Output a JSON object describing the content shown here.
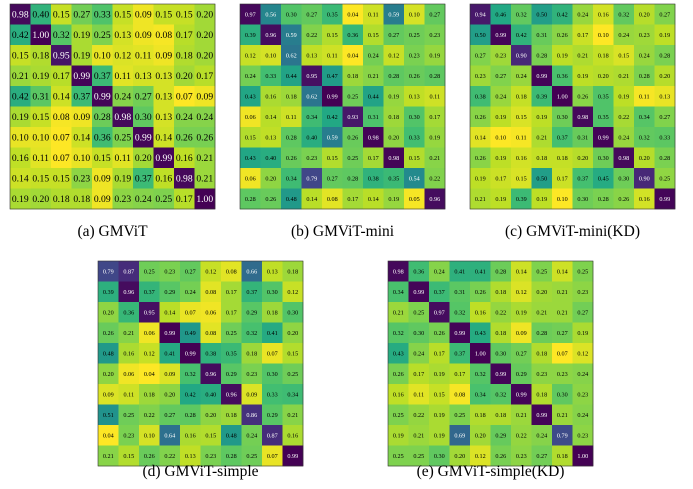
{
  "chart_data": [
    {
      "type": "heatmap",
      "caption": "(a) GMViT",
      "rows": 10,
      "cols": 10,
      "values": [
        [
          0.98,
          0.4,
          0.15,
          0.27,
          0.33,
          0.15,
          0.09,
          0.15,
          0.15,
          0.2
        ],
        [
          0.42,
          1.0,
          0.32,
          0.19,
          0.25,
          0.13,
          0.09,
          0.08,
          0.17,
          0.2
        ],
        [
          0.15,
          0.18,
          0.95,
          0.19,
          0.1,
          0.12,
          0.11,
          0.09,
          0.18,
          0.2
        ],
        [
          0.21,
          0.19,
          0.17,
          0.99,
          0.37,
          0.11,
          0.13,
          0.13,
          0.2,
          0.17
        ],
        [
          0.42,
          0.31,
          0.14,
          0.37,
          0.99,
          0.24,
          0.27,
          0.13,
          0.07,
          0.09
        ],
        [
          0.19,
          0.15,
          0.08,
          0.09,
          0.28,
          0.98,
          0.3,
          0.13,
          0.24,
          0.24
        ],
        [
          0.1,
          0.1,
          0.07,
          0.14,
          0.36,
          0.25,
          0.99,
          0.14,
          0.26,
          0.26
        ],
        [
          0.16,
          0.11,
          0.07,
          0.1,
          0.15,
          0.11,
          0.2,
          0.99,
          0.16,
          0.21
        ],
        [
          0.14,
          0.15,
          0.15,
          0.23,
          0.09,
          0.19,
          0.37,
          0.16,
          0.98,
          0.21
        ],
        [
          0.19,
          0.2,
          0.18,
          0.18,
          0.09,
          0.23,
          0.24,
          0.25,
          0.17,
          1.0
        ]
      ]
    },
    {
      "type": "heatmap",
      "caption": "(b) GMViT-mini",
      "rows": 10,
      "cols": 10,
      "values": [
        [
          0.97,
          0.56,
          0.3,
          0.27,
          0.35,
          0.04,
          0.11,
          0.59,
          0.1,
          0.27
        ],
        [
          0.39,
          0.96,
          0.59,
          0.22,
          0.15,
          0.36,
          0.15,
          0.27,
          0.25,
          0.23
        ],
        [
          0.12,
          0.1,
          0.62,
          0.13,
          0.11,
          0.04,
          0.24,
          0.12,
          0.23,
          0.19
        ],
        [
          0.24,
          0.33,
          0.44,
          0.95,
          0.47,
          0.18,
          0.21,
          0.28,
          0.26,
          0.28
        ],
        [
          0.43,
          0.16,
          0.18,
          0.62,
          0.99,
          0.25,
          0.44,
          0.19,
          0.13,
          0.11
        ],
        [
          0.06,
          0.14,
          0.11,
          0.34,
          0.42,
          0.93,
          0.31,
          0.18,
          0.3,
          0.17
        ],
        [
          0.15,
          0.13,
          0.28,
          0.4,
          0.59,
          0.26,
          0.98,
          0.2,
          0.33,
          0.19
        ],
        [
          0.43,
          0.4,
          0.26,
          0.23,
          0.15,
          0.25,
          0.17,
          0.98,
          0.15,
          0.21
        ],
        [
          0.06,
          0.2,
          0.34,
          0.79,
          0.27,
          0.28,
          0.38,
          0.35,
          0.54,
          0.22
        ],
        [
          0.28,
          0.26,
          0.48,
          0.14,
          0.08,
          0.17,
          0.14,
          0.19,
          0.05,
          0.96
        ]
      ]
    },
    {
      "type": "heatmap",
      "caption": "(c) GMViT-mini(KD)",
      "rows": 10,
      "cols": 10,
      "values": [
        [
          0.94,
          0.46,
          0.32,
          0.5,
          0.42,
          0.24,
          0.16,
          0.32,
          0.2,
          0.27
        ],
        [
          0.5,
          0.99,
          0.42,
          0.31,
          0.26,
          0.17,
          0.1,
          0.24,
          0.23,
          0.19
        ],
        [
          0.27,
          0.23,
          0.9,
          0.28,
          0.19,
          0.21,
          0.18,
          0.15,
          0.24,
          0.28
        ],
        [
          0.23,
          0.27,
          0.24,
          0.99,
          0.36,
          0.19,
          0.2,
          0.21,
          0.28,
          0.2
        ],
        [
          0.38,
          0.24,
          0.18,
          0.39,
          1.0,
          0.26,
          0.35,
          0.19,
          0.11,
          0.13
        ],
        [
          0.26,
          0.19,
          0.15,
          0.19,
          0.3,
          0.98,
          0.35,
          0.22,
          0.34,
          0.27
        ],
        [
          0.14,
          0.1,
          0.11,
          0.21,
          0.37,
          0.31,
          0.99,
          0.24,
          0.32,
          0.33
        ],
        [
          0.26,
          0.19,
          0.16,
          0.18,
          0.18,
          0.2,
          0.3,
          0.98,
          0.2,
          0.28
        ],
        [
          0.19,
          0.17,
          0.15,
          0.5,
          0.17,
          0.37,
          0.45,
          0.3,
          0.9,
          0.25
        ],
        [
          0.21,
          0.19,
          0.39,
          0.19,
          0.1,
          0.3,
          0.28,
          0.26,
          0.16,
          0.99
        ]
      ]
    },
    {
      "type": "heatmap",
      "caption": "(d) GMViT-simple",
      "rows": 10,
      "cols": 10,
      "values": [
        [
          0.79,
          0.87,
          0.25,
          0.23,
          0.27,
          0.12,
          0.08,
          0.66,
          0.13,
          0.18
        ],
        [
          0.39,
          0.96,
          0.37,
          0.29,
          0.24,
          0.08,
          0.17,
          0.37,
          0.3,
          0.12
        ],
        [
          0.2,
          0.36,
          0.95,
          0.14,
          0.07,
          0.06,
          0.17,
          0.29,
          0.18,
          0.3
        ],
        [
          0.26,
          0.21,
          0.06,
          0.99,
          0.49,
          0.08,
          0.25,
          0.32,
          0.41,
          0.2
        ],
        [
          0.48,
          0.16,
          0.12,
          0.41,
          0.99,
          0.38,
          0.35,
          0.18,
          0.07,
          0.15
        ],
        [
          0.2,
          0.06,
          0.04,
          0.09,
          0.32,
          0.96,
          0.29,
          0.23,
          0.3,
          0.25
        ],
        [
          0.09,
          0.11,
          0.18,
          0.2,
          0.42,
          0.4,
          0.96,
          0.09,
          0.33,
          0.34
        ],
        [
          0.51,
          0.25,
          0.22,
          0.27,
          0.28,
          0.2,
          0.18,
          0.86,
          0.29,
          0.21
        ],
        [
          0.04,
          0.23,
          0.1,
          0.64,
          0.16,
          0.15,
          0.48,
          0.24,
          0.87,
          0.16
        ],
        [
          0.21,
          0.15,
          0.26,
          0.22,
          0.13,
          0.23,
          0.28,
          0.25,
          0.07,
          0.99
        ]
      ]
    },
    {
      "type": "heatmap",
      "caption": "(e) GMViT-simple(KD)",
      "rows": 10,
      "cols": 10,
      "values": [
        [
          0.98,
          0.36,
          0.24,
          0.41,
          0.41,
          0.28,
          0.14,
          0.25,
          0.14,
          0.25
        ],
        [
          0.34,
          0.99,
          0.37,
          0.31,
          0.26,
          0.18,
          0.12,
          0.2,
          0.21,
          0.23
        ],
        [
          0.21,
          0.25,
          0.97,
          0.32,
          0.16,
          0.22,
          0.19,
          0.21,
          0.21,
          0.27
        ],
        [
          0.32,
          0.3,
          0.26,
          0.99,
          0.43,
          0.18,
          0.09,
          0.28,
          0.27,
          0.19
        ],
        [
          0.43,
          0.24,
          0.17,
          0.37,
          1.0,
          0.3,
          0.27,
          0.18,
          0.07,
          0.12
        ],
        [
          0.26,
          0.17,
          0.19,
          0.17,
          0.32,
          0.99,
          0.29,
          0.23,
          0.23,
          0.24
        ],
        [
          0.16,
          0.11,
          0.15,
          0.08,
          0.34,
          0.32,
          0.99,
          0.18,
          0.3,
          0.23
        ],
        [
          0.25,
          0.22,
          0.19,
          0.25,
          0.18,
          0.18,
          0.21,
          0.99,
          0.21,
          0.24
        ],
        [
          0.19,
          0.21,
          0.19,
          0.69,
          0.2,
          0.29,
          0.22,
          0.24,
          0.79,
          0.23
        ],
        [
          0.25,
          0.25,
          0.3,
          0.2,
          0.12,
          0.26,
          0.23,
          0.27,
          0.18,
          1.0
        ]
      ]
    }
  ]
}
